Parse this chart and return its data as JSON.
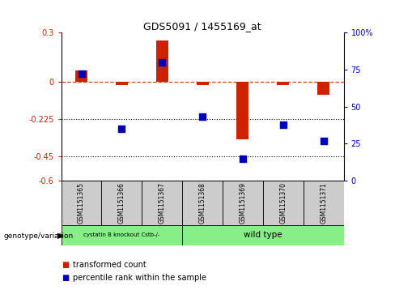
{
  "title": "GDS5091 / 1455169_at",
  "samples": [
    "GSM1151365",
    "GSM1151366",
    "GSM1151367",
    "GSM1151368",
    "GSM1151369",
    "GSM1151370",
    "GSM1151371"
  ],
  "red_values": [
    0.07,
    -0.02,
    0.25,
    -0.02,
    -0.35,
    -0.02,
    -0.08
  ],
  "blue_values": [
    72,
    35,
    80,
    43,
    15,
    38,
    27
  ],
  "ylim_left": [
    -0.6,
    0.3
  ],
  "ylim_right": [
    0,
    100
  ],
  "yticks_left": [
    0.3,
    0.0,
    -0.225,
    -0.45,
    -0.6
  ],
  "yticks_right": [
    100,
    75,
    50,
    25,
    0
  ],
  "group1_label": "cystatin B knockout Cstb-/-",
  "group2_label": "wild type",
  "group1_indices": [
    0,
    1,
    2
  ],
  "group2_indices": [
    3,
    4,
    5,
    6
  ],
  "genotype_label": "genotype/variation",
  "legend1": "transformed count",
  "legend2": "percentile rank within the sample",
  "red_color": "#cc2200",
  "blue_color": "#0000bb",
  "group1_color": "#88ee88",
  "group2_color": "#88ee88",
  "bar_width": 0.3,
  "dot_size": 30,
  "bg_color": "#ffffff",
  "gray_cell": "#cccccc"
}
